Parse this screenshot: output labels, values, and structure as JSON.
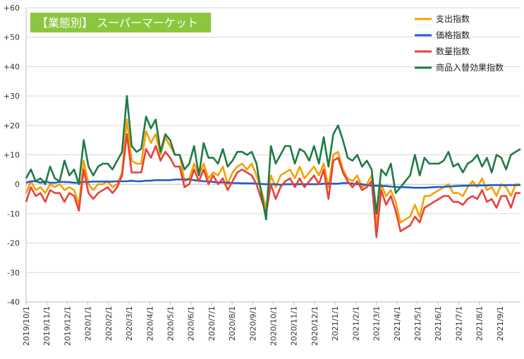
{
  "chart_data": {
    "type": "line",
    "title": "【業態別】 スーパーマーケット",
    "title_bg_color": "#8CC63F",
    "ylim": [
      -40,
      60
    ],
    "yticks": [
      -40,
      -30,
      -20,
      -10,
      0,
      10,
      20,
      30,
      40,
      50,
      60
    ],
    "ytick_labels": [
      "-40",
      "-30",
      "-20",
      "-10",
      "0",
      "+10",
      "+20",
      "+30",
      "+40",
      "+50",
      "+60"
    ],
    "grid": "horizontal",
    "legend_position": "top-right",
    "x_start": "2019/10/1",
    "x_end": "2021/9/30",
    "x_tick_labels": [
      "2019/10/1",
      "2019/11/1",
      "2019/12/1",
      "2020/1/1",
      "2020/2/1",
      "2020/3/1",
      "2020/4/1",
      "2020/5/1",
      "2020/6/1",
      "2020/7/1",
      "2020/8/1",
      "2020/9/1",
      "2020/10/1",
      "2020/11/1",
      "2020/12/1",
      "2021/1/1",
      "2021/2/1",
      "2021/3/1",
      "2021/4/1",
      "2021/5/1",
      "2021/6/1",
      "2021/7/1",
      "2021/8/1",
      "2021/9/1"
    ],
    "series": [
      {
        "name": "支出指数",
        "color": "#F5A000",
        "values": [
          -3,
          1,
          -2,
          -1,
          -3,
          0,
          -1,
          0,
          -2,
          -1,
          -2,
          -7,
          8,
          0,
          -2,
          0,
          0,
          1,
          -1,
          0,
          4,
          22,
          8,
          7,
          7,
          18,
          14,
          17,
          10,
          16,
          13,
          10,
          10,
          1,
          2,
          7,
          3,
          7,
          2,
          4,
          3,
          6,
          0,
          4,
          6,
          7,
          5,
          7,
          3,
          -2,
          -8,
          3,
          -1,
          3,
          4,
          5,
          2,
          6,
          2,
          4,
          6,
          3,
          7,
          -1,
          10,
          11,
          5,
          2,
          1,
          3,
          -1,
          0,
          3,
          -14,
          0,
          -4,
          -2,
          -6,
          -13,
          -12,
          -11,
          -7,
          -11,
          -4,
          -4,
          -3,
          -2,
          -1,
          0,
          -3,
          -3,
          -4,
          -1,
          1,
          -1,
          2,
          -2,
          -1,
          -4,
          0,
          -1,
          -4,
          0,
          0
        ]
      },
      {
        "name": "価格指数",
        "color": "#1F5FBF",
        "values": [
          0.5,
          1,
          1,
          0.5,
          1,
          0.5,
          0.5,
          0.8,
          0.8,
          0.7,
          0.5,
          0.5,
          0.8,
          0.8,
          0.9,
          0.9,
          0.9,
          0.9,
          0.9,
          1,
          1,
          1,
          1.2,
          1,
          1,
          1.2,
          1.2,
          1.4,
          1.4,
          1.4,
          1.4,
          1.6,
          1.6,
          1.6,
          1.6,
          1.4,
          1.2,
          1,
          1,
          0.8,
          0.6,
          0.6,
          0.5,
          0.4,
          0.4,
          0.3,
          0.3,
          0.3,
          0.2,
          0.1,
          0,
          0,
          0,
          -0.2,
          0,
          0,
          0,
          0,
          0,
          0,
          0,
          0,
          0.2,
          0.2,
          0.2,
          0.2,
          0.4,
          0.4,
          0.2,
          0,
          0,
          -0.3,
          -0.5,
          -0.5,
          -0.6,
          -0.6,
          -0.8,
          -0.9,
          -1,
          -1,
          -1.1,
          -1.2,
          -1.2,
          -1.2,
          -1.1,
          -1,
          -0.9,
          -0.9,
          -0.8,
          -0.7,
          -0.6,
          -0.5,
          -0.5,
          -0.4,
          -0.4,
          -0.4,
          -0.4,
          -0.3,
          -0.3,
          -0.3,
          -0.3,
          -0.3,
          -0.3,
          -0.3
        ]
      },
      {
        "name": "数量指数",
        "color": "#E8413C",
        "values": [
          -6,
          -1,
          -4,
          -3,
          -6,
          -2,
          -3,
          -3,
          -6,
          -3,
          -4,
          -9,
          5,
          -3,
          -5,
          -3,
          -2,
          -1,
          -3,
          -1,
          3,
          17,
          4,
          4,
          4,
          12,
          9,
          13,
          8,
          11,
          9,
          6,
          6,
          -1,
          0,
          5,
          1,
          5,
          0,
          3,
          0,
          2,
          -2,
          1,
          4,
          5,
          4,
          3,
          0,
          -5,
          -10,
          0,
          -5,
          -1,
          1,
          2,
          -1,
          2,
          -1,
          1,
          3,
          0,
          5,
          -5,
          8,
          9,
          4,
          1,
          -1,
          1,
          -2,
          -1,
          1,
          -18,
          -2,
          -7,
          -4,
          -9,
          -16,
          -15,
          -14,
          -11,
          -13,
          -8,
          -7,
          -6,
          -5,
          -4,
          -4,
          -6,
          -6,
          -7,
          -5,
          -4,
          -5,
          -2,
          -6,
          -5,
          -8,
          -4,
          -4,
          -8,
          -3,
          -3
        ]
      },
      {
        "name": "商品入替効果指数",
        "color": "#1E7B45",
        "values": [
          2,
          5,
          1,
          2,
          0,
          6,
          2,
          1,
          8,
          3,
          5,
          0,
          15,
          6,
          3,
          6,
          7,
          7,
          5,
          8,
          11,
          30,
          13,
          11,
          12,
          23,
          19,
          22,
          11,
          17,
          15,
          10,
          10,
          5,
          7,
          13,
          3,
          14,
          9,
          9,
          7,
          12,
          6,
          8,
          11,
          11,
          10,
          11,
          7,
          -3,
          -12,
          13,
          7,
          10,
          13,
          13,
          7,
          12,
          11,
          8,
          13,
          7,
          16,
          6,
          17,
          20,
          15,
          9,
          8,
          10,
          6,
          8,
          5,
          -10,
          5,
          3,
          7,
          -3,
          -1,
          1,
          3,
          10,
          3,
          9,
          7,
          7,
          7,
          8,
          11,
          6,
          7,
          4,
          7,
          8,
          10,
          6,
          9,
          4,
          10,
          9,
          5,
          10,
          11,
          12
        ]
      }
    ]
  }
}
